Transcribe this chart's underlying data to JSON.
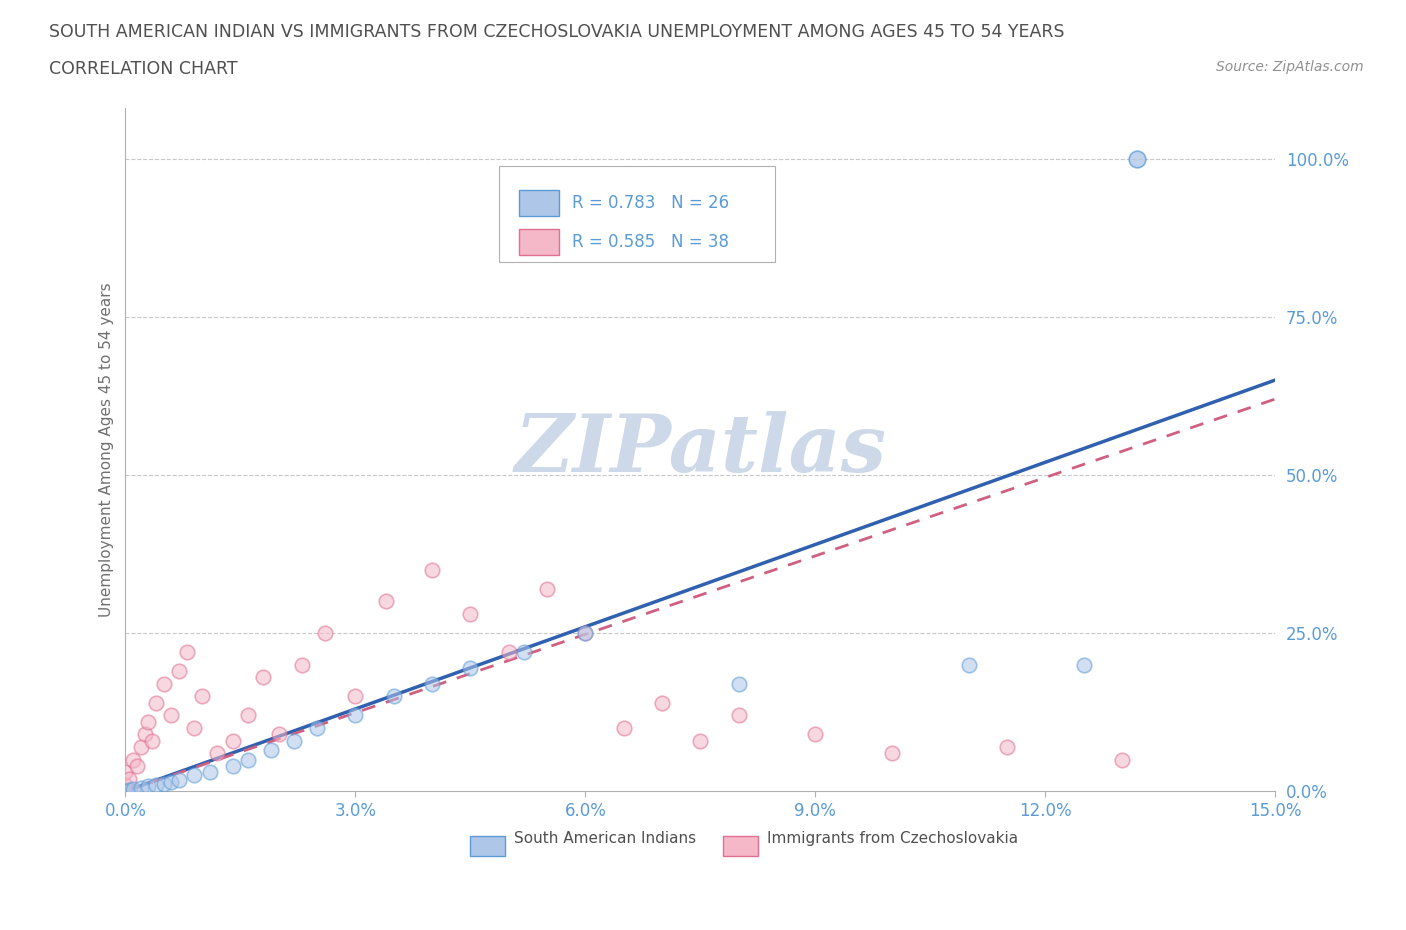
{
  "title_line1": "SOUTH AMERICAN INDIAN VS IMMIGRANTS FROM CZECHOSLOVAKIA UNEMPLOYMENT AMONG AGES 45 TO 54 YEARS",
  "title_line2": "CORRELATION CHART",
  "source_text": "Source: ZipAtlas.com",
  "ylabel": "Unemployment Among Ages 45 to 54 years",
  "watermark_text": "ZIPatlas",
  "legend_entries": [
    {
      "label": "South American Indians",
      "R": 0.783,
      "N": 26,
      "face_color": "#aec6e8",
      "edge_color": "#5b9bd5"
    },
    {
      "label": "Immigrants from Czechoslovakia",
      "R": 0.585,
      "N": 38,
      "face_color": "#f4b8c8",
      "edge_color": "#e07090"
    }
  ],
  "blue_line_color": "#3060b0",
  "pink_line_color": "#d06080",
  "blue_line_x": [
    0.0,
    15.0
  ],
  "blue_line_y": [
    0.0,
    65.0
  ],
  "pink_line_x": [
    0.0,
    15.0
  ],
  "pink_line_y": [
    0.0,
    62.0
  ],
  "xmin": 0.0,
  "xmax": 15.0,
  "ymin": 0.0,
  "ymax": 108.0,
  "yticks": [
    0,
    25,
    50,
    75,
    100
  ],
  "ytick_labels": [
    "0.0%",
    "25.0%",
    "50.0%",
    "75.0%",
    "100.0%"
  ],
  "xticks": [
    0,
    3,
    6,
    9,
    12,
    15
  ],
  "xtick_labels": [
    "0.0%",
    "3.0%",
    "6.0%",
    "9.0%",
    "12.0%",
    "15.0%"
  ],
  "grid_color": "#c8c8c8",
  "background_color": "#ffffff",
  "title_color": "#505050",
  "tick_label_color": "#5b9bd5",
  "axis_color": "#b0b0b0",
  "watermark_color": "#cdd8e8",
  "scatter_alpha": 0.55,
  "scatter_size": 110,
  "blue_scatter_x": [
    0.0,
    0.05,
    0.1,
    0.2,
    0.3,
    0.4,
    0.5,
    0.6,
    0.7,
    0.9,
    1.1,
    1.4,
    1.6,
    1.9,
    2.2,
    2.5,
    3.0,
    3.5,
    4.0,
    4.5,
    5.2,
    6.0,
    8.0,
    11.0,
    12.5,
    13.2
  ],
  "blue_scatter_y": [
    0.1,
    0.2,
    0.3,
    0.5,
    0.8,
    1.0,
    1.2,
    1.5,
    1.8,
    2.5,
    3.0,
    4.0,
    5.0,
    6.5,
    8.0,
    10.0,
    12.0,
    15.0,
    17.0,
    19.5,
    22.0,
    25.0,
    17.0,
    20.0,
    20.0,
    100.0
  ],
  "pink_scatter_x": [
    0.0,
    0.0,
    0.05,
    0.1,
    0.15,
    0.2,
    0.25,
    0.3,
    0.35,
    0.4,
    0.5,
    0.6,
    0.7,
    0.8,
    0.9,
    1.0,
    1.2,
    1.4,
    1.6,
    1.8,
    2.0,
    2.3,
    2.6,
    3.0,
    3.4,
    4.0,
    4.5,
    5.0,
    5.5,
    6.0,
    6.5,
    7.0,
    7.5,
    8.0,
    9.0,
    10.0,
    11.5,
    13.0
  ],
  "pink_scatter_y": [
    1.0,
    3.0,
    2.0,
    5.0,
    4.0,
    7.0,
    9.0,
    11.0,
    8.0,
    14.0,
    17.0,
    12.0,
    19.0,
    22.0,
    10.0,
    15.0,
    6.0,
    8.0,
    12.0,
    18.0,
    9.0,
    20.0,
    25.0,
    15.0,
    30.0,
    35.0,
    28.0,
    22.0,
    32.0,
    25.0,
    10.0,
    14.0,
    8.0,
    12.0,
    9.0,
    6.0,
    7.0,
    5.0
  ]
}
